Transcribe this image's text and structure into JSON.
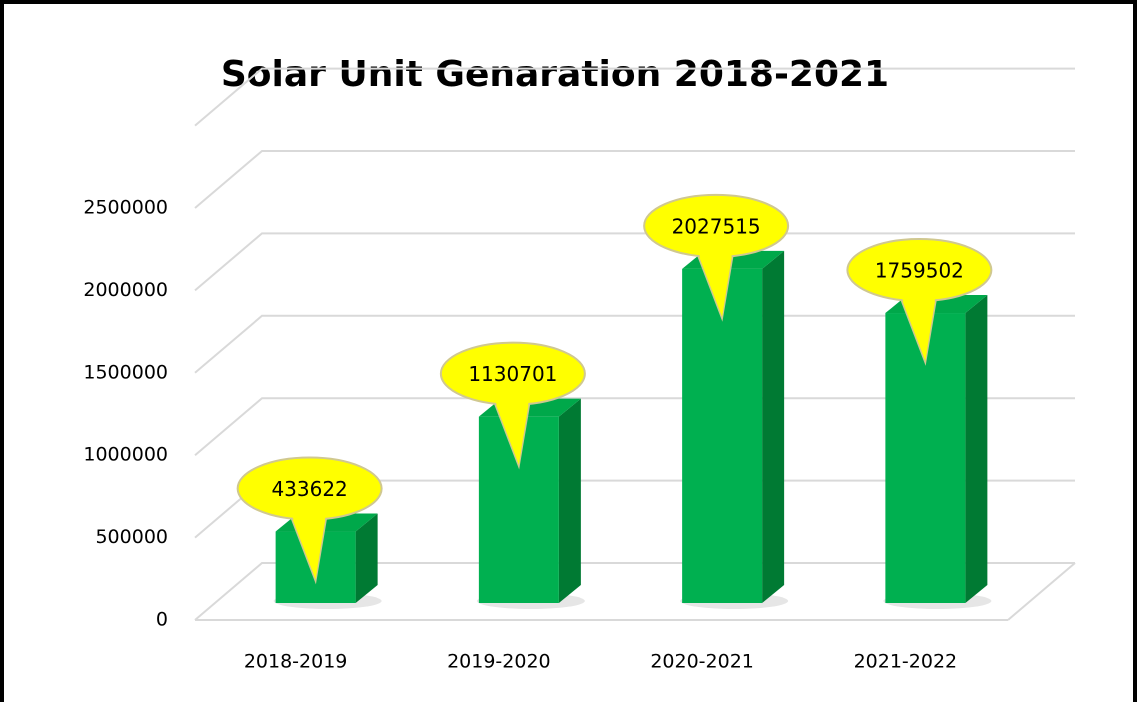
{
  "chart_data": {
    "type": "bar",
    "title": "Solar Unit Genaration 2018-2021",
    "categories": [
      "2018-2019",
      "2019-2020",
      "2020-2021",
      "2021-2022"
    ],
    "values": [
      433622,
      1130701,
      2027515,
      1759502
    ],
    "color": "#00b050",
    "label_color": "#ffff00",
    "ylim": [
      0,
      3000000
    ],
    "yticks": [
      0,
      500000,
      1000000,
      1500000,
      2000000,
      2500000
    ],
    "grid": true
  }
}
